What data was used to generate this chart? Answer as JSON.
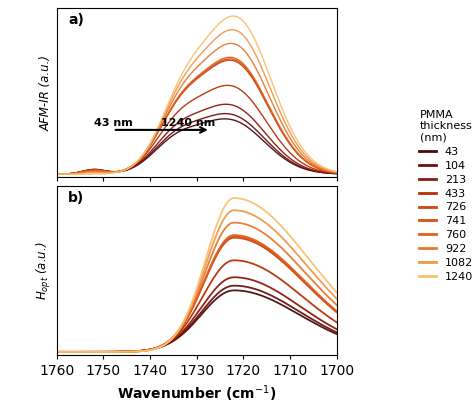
{
  "thicknesses": [
    43,
    104,
    213,
    433,
    726,
    741,
    760,
    922,
    1082,
    1240
  ],
  "colors": [
    "#4A0C0C",
    "#6B1010",
    "#8B1A0A",
    "#B83008",
    "#D04510",
    "#D85018",
    "#E06020",
    "#E87830",
    "#F09848",
    "#F8C070"
  ],
  "xmin": 1700,
  "xmax": 1760,
  "xlabel": "Wavenumber (cm$^{-1}$)",
  "ylabel_a": "AFM-IR (a.u.)",
  "ylabel_b": "$H_{opt}$ (a.u.)",
  "legend_title": "PMMA\nthickness\n(nm)",
  "panel_a_label": "a)",
  "panel_b_label": "b)"
}
